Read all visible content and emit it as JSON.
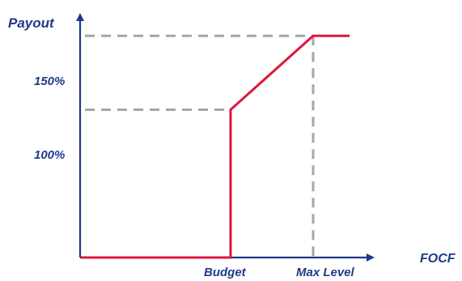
{
  "colors": {
    "axis": "#1f3a8a",
    "label": "#1f3a8a",
    "line": "#e0163c",
    "guide": "#a6a6a6"
  },
  "chart_data": {
    "type": "line",
    "title": "",
    "xlabel": "FOCF",
    "ylabel": "Payout",
    "grid": false,
    "legend": "none",
    "x_ticks": [
      "Budget",
      "Max Level"
    ],
    "y_ticks": [
      "100%",
      "150%"
    ],
    "ylim": [
      0,
      166
    ],
    "series": [
      {
        "name": "",
        "points": [
          {
            "x": "start",
            "y": 0
          },
          {
            "x": "Budget",
            "y": 0
          },
          {
            "x": "Budget",
            "y": 100
          },
          {
            "x": "Max Level",
            "y": 150
          },
          {
            "x": "end",
            "y": 150
          }
        ]
      }
    ]
  }
}
